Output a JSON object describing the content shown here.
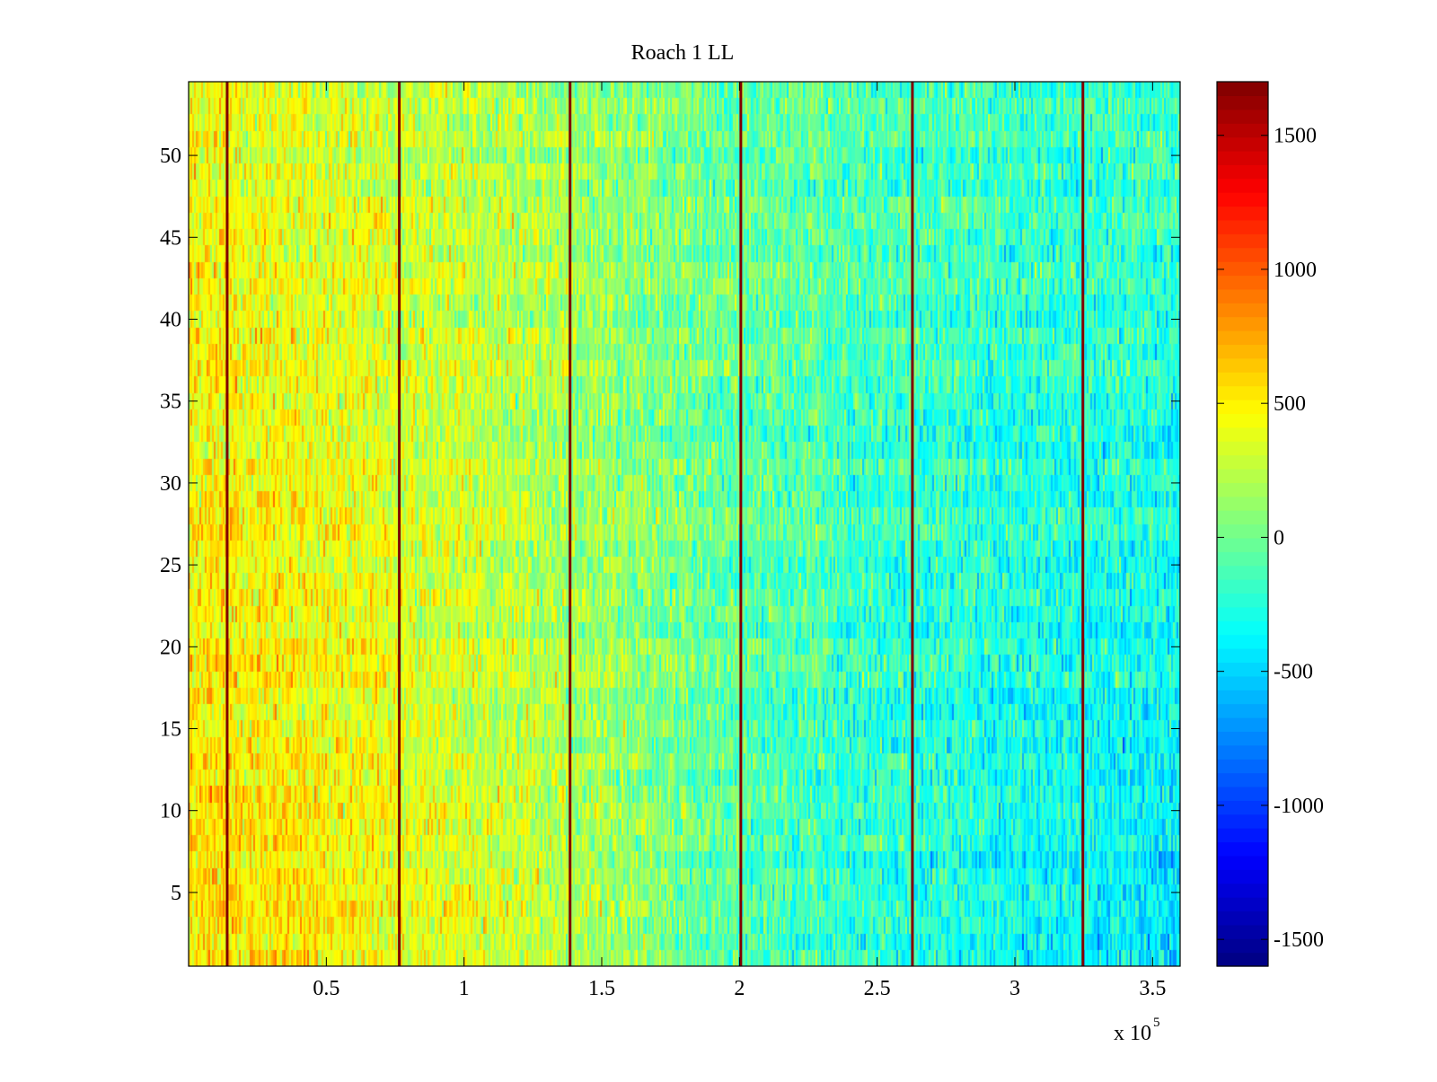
{
  "chart_data": {
    "type": "heatmap",
    "title": "Roach 1 LL",
    "xlabel": "",
    "ylabel": "",
    "x_exponent_label": "x 10",
    "x_exponent_power": "5",
    "xlim": [
      0,
      360000
    ],
    "ylim": [
      0.5,
      54.5
    ],
    "x_ticks": [
      50000,
      100000,
      150000,
      200000,
      250000,
      300000,
      350000
    ],
    "x_tick_labels": [
      "0.5",
      "1",
      "1.5",
      "2",
      "2.5",
      "3",
      "3.5"
    ],
    "y_ticks": [
      5,
      10,
      15,
      20,
      25,
      30,
      35,
      40,
      45,
      50
    ],
    "y_tick_labels": [
      "5",
      "10",
      "15",
      "20",
      "25",
      "30",
      "35",
      "40",
      "45",
      "50"
    ],
    "rows": 54,
    "colormap": "jet",
    "color_range": [
      -1600,
      1700
    ],
    "colorbar_ticks": [
      -1500,
      -1000,
      -500,
      0,
      500,
      1000,
      1500
    ],
    "colorbar_tick_labels": [
      "-1500",
      "-1000",
      "-500",
      "0",
      "500",
      "1000",
      "1500"
    ],
    "vertical_lines_x": [
      14000,
      76500,
      138500,
      200500,
      262800,
      324700
    ],
    "vertical_line_value": 1700,
    "trend": {
      "description_values_at_x": [
        0,
        50000,
        100000,
        150000,
        200000,
        250000,
        300000,
        360000
      ],
      "mean_value_top_rows": [
        450,
        350,
        250,
        120,
        0,
        -100,
        -150,
        -150
      ],
      "mean_value_bottom_rows": [
        550,
        500,
        350,
        150,
        -100,
        -250,
        -350,
        -450
      ]
    },
    "grid": false,
    "legend": "none"
  }
}
